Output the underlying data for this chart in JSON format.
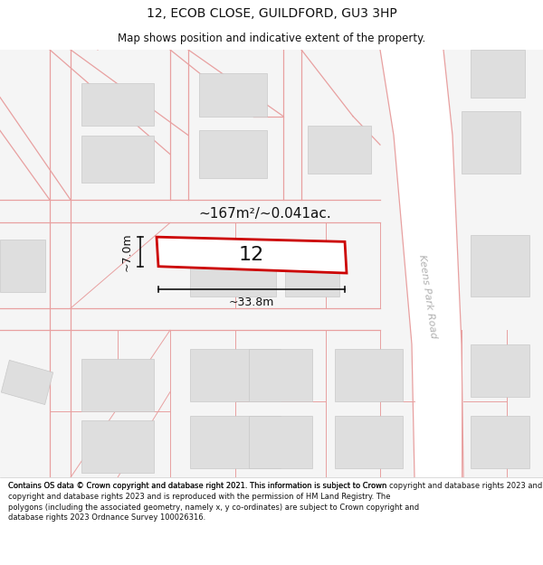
{
  "title": "12, ECOB CLOSE, GUILDFORD, GU3 3HP",
  "subtitle": "Map shows position and indicative extent of the property.",
  "footer": "Contains OS data © Crown copyright and database right 2021. This information is subject to Crown copyright and database rights 2023 and is reproduced with the permission of HM Land Registry. The polygons (including the associated geometry, namely x, y co-ordinates) are subject to Crown copyright and database rights 2023 Ordnance Survey 100026316.",
  "bg_color": "#ffffff",
  "map_bg": "#f2f2f2",
  "plot_color": "#cc0000",
  "street_line_color": "#e8a0a0",
  "building_fill": "#dedede",
  "building_edge": "#c8c8c8",
  "road_label_color": "#b0b0b0",
  "annotation_color": "#111111",
  "area_label": "~167m²/~0.041ac.",
  "width_label": "~33.8m",
  "height_label": "~7.0m",
  "plot_number": "12",
  "road_name": "Keens Park Road"
}
